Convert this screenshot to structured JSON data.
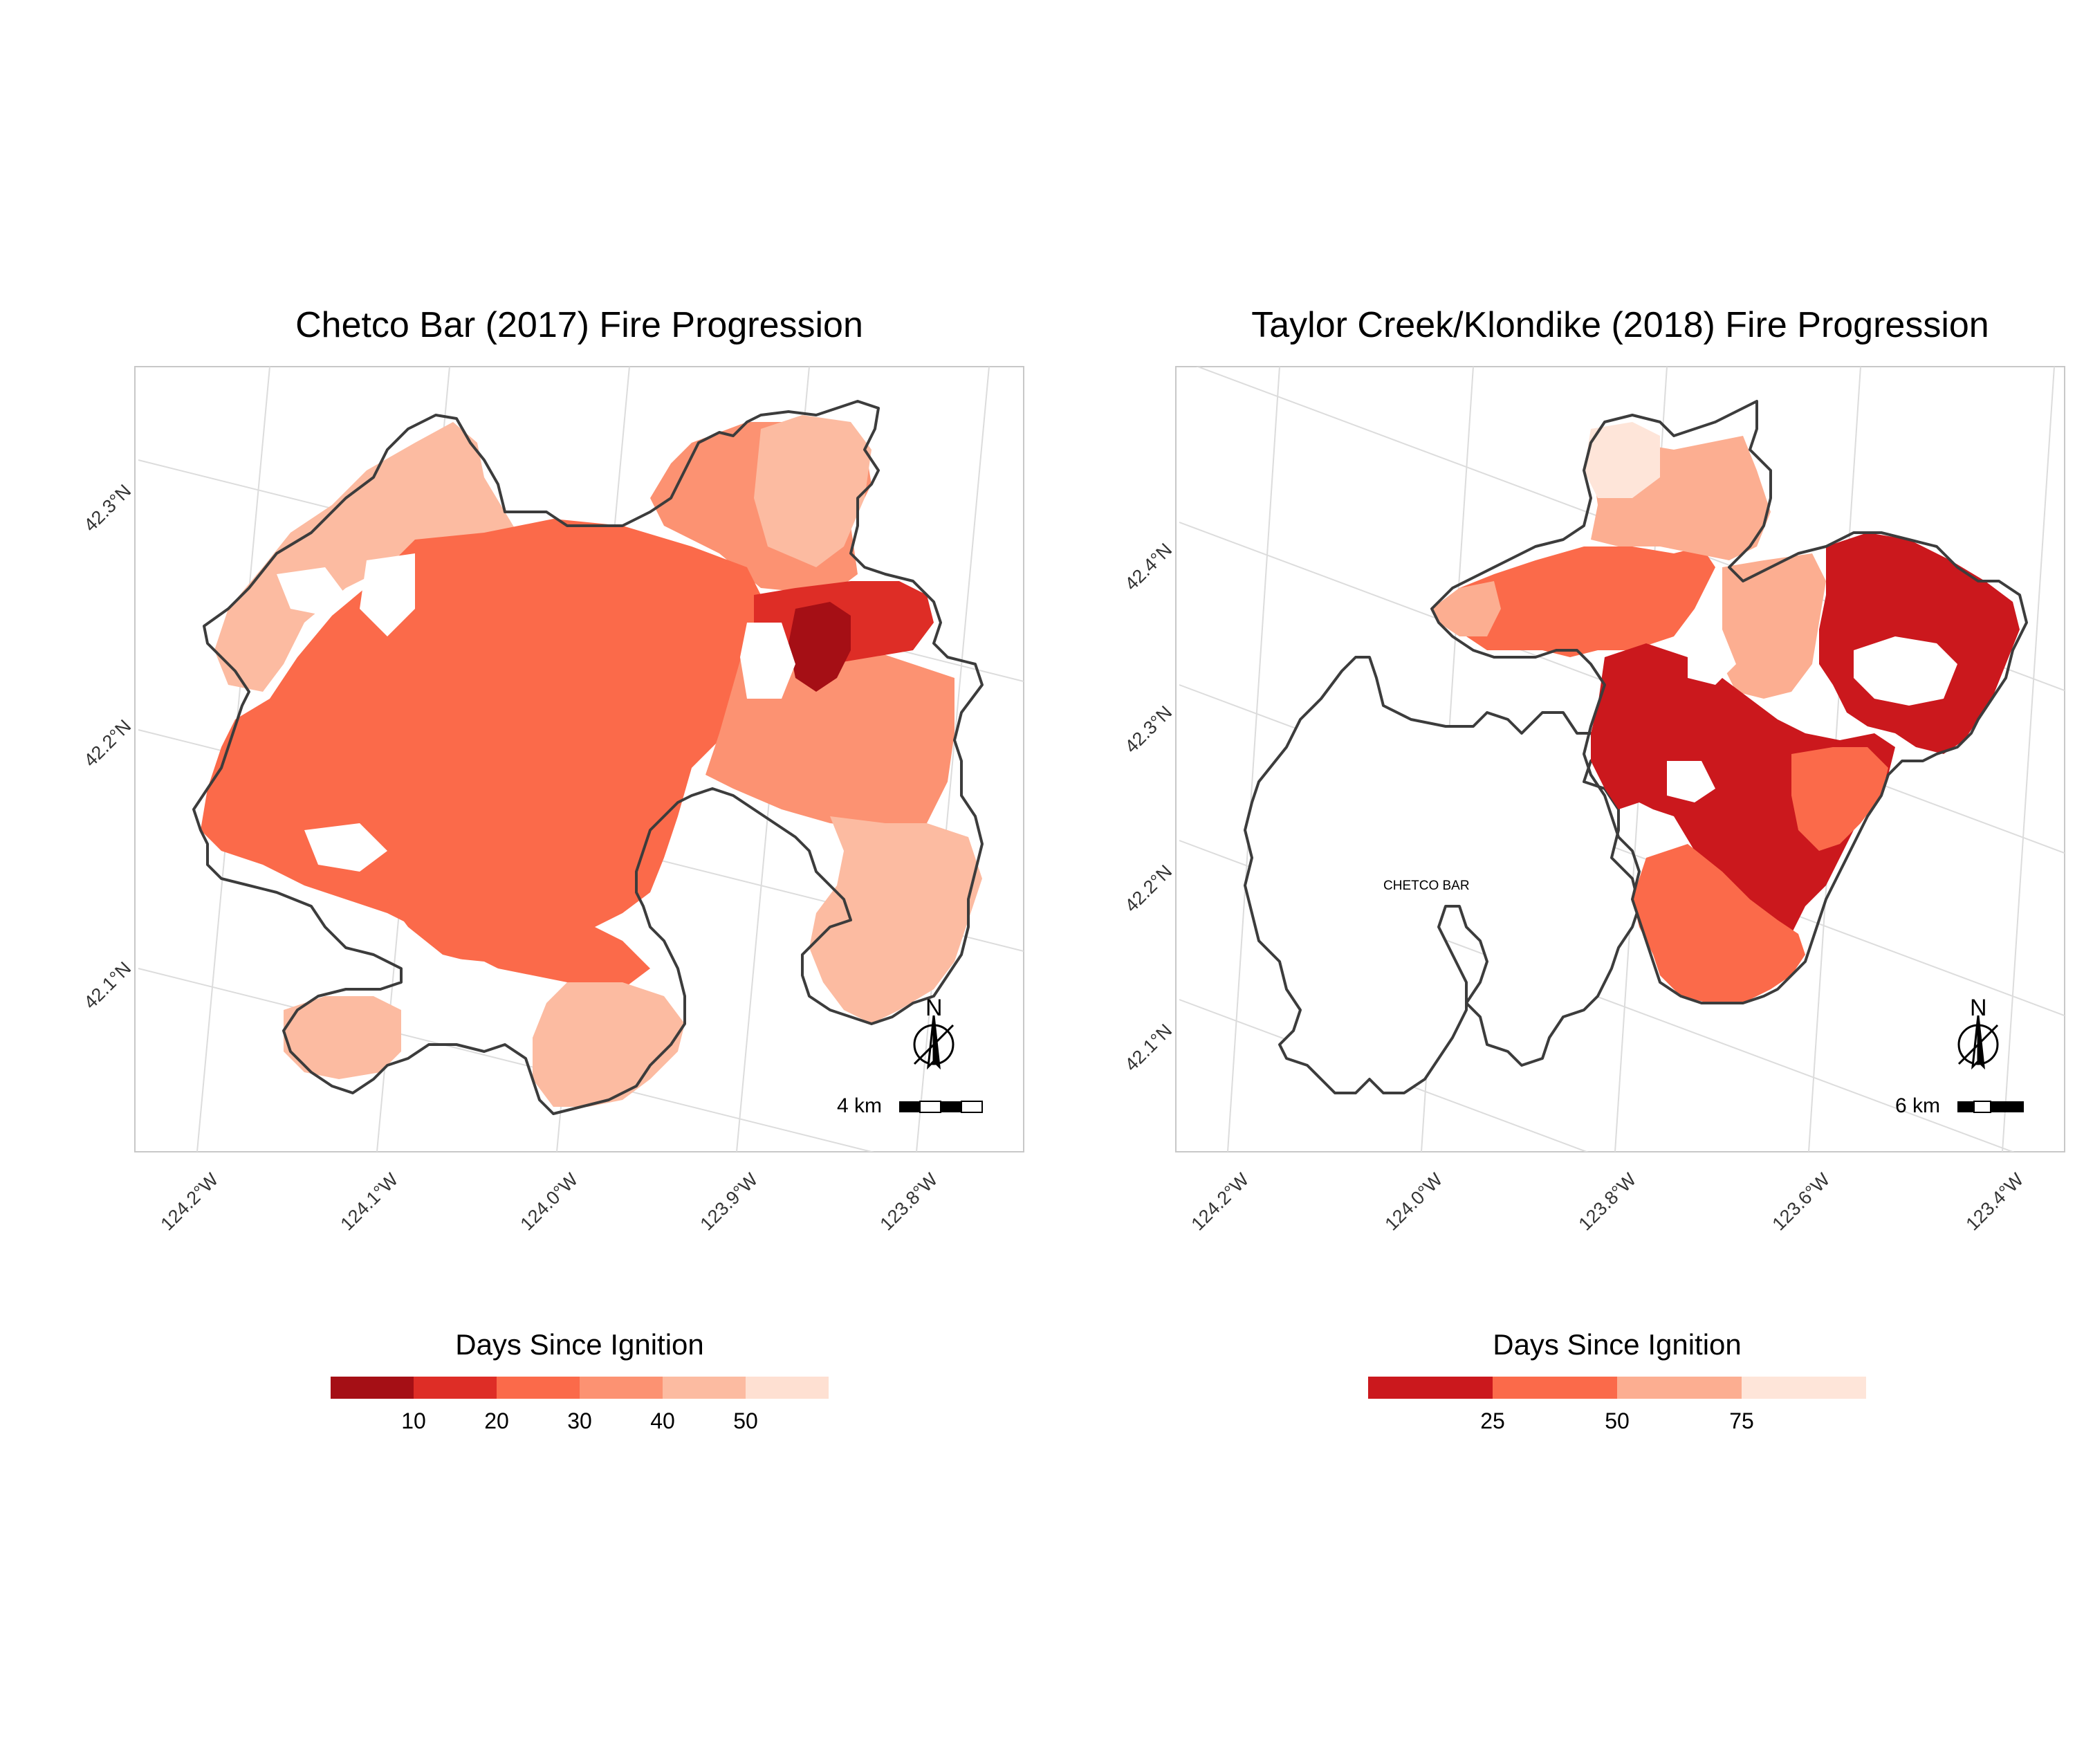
{
  "panels": [
    {
      "title": "Chetco Bar (2017) Fire Progression",
      "lat_labels": [
        "42.3°N",
        "42.2°N",
        "42.1°N"
      ],
      "lon_labels": [
        "124.2°W",
        "124.1°W",
        "124.0°W",
        "123.9°W",
        "123.8°W"
      ],
      "scale_text": "4 km",
      "north_text": "N",
      "legend": {
        "title": "Days Since Ignition",
        "colors": [
          "#a50f15",
          "#de2d26",
          "#fb6a4a",
          "#fc9272",
          "#fcbba1",
          "#fee0d2"
        ],
        "ticks": [
          "10",
          "20",
          "30",
          "40",
          "50"
        ]
      }
    },
    {
      "title": "Taylor Creek/Klondike (2018) Fire Progression",
      "lat_labels": [
        "42.4°N",
        "42.3°N",
        "42.2°N",
        "42.1°N"
      ],
      "lon_labels": [
        "124.2°W",
        "124.0°W",
        "123.8°W",
        "123.6°W",
        "123.4°W"
      ],
      "scale_text": "6 km",
      "north_text": "N",
      "fire_label": "CHETCO BAR",
      "legend": {
        "title": "Days Since Ignition",
        "colors": [
          "#cb181d",
          "#fb6a4a",
          "#fcae91",
          "#fee5d9"
        ],
        "ticks": [
          "25",
          "50",
          "75"
        ]
      }
    }
  ]
}
